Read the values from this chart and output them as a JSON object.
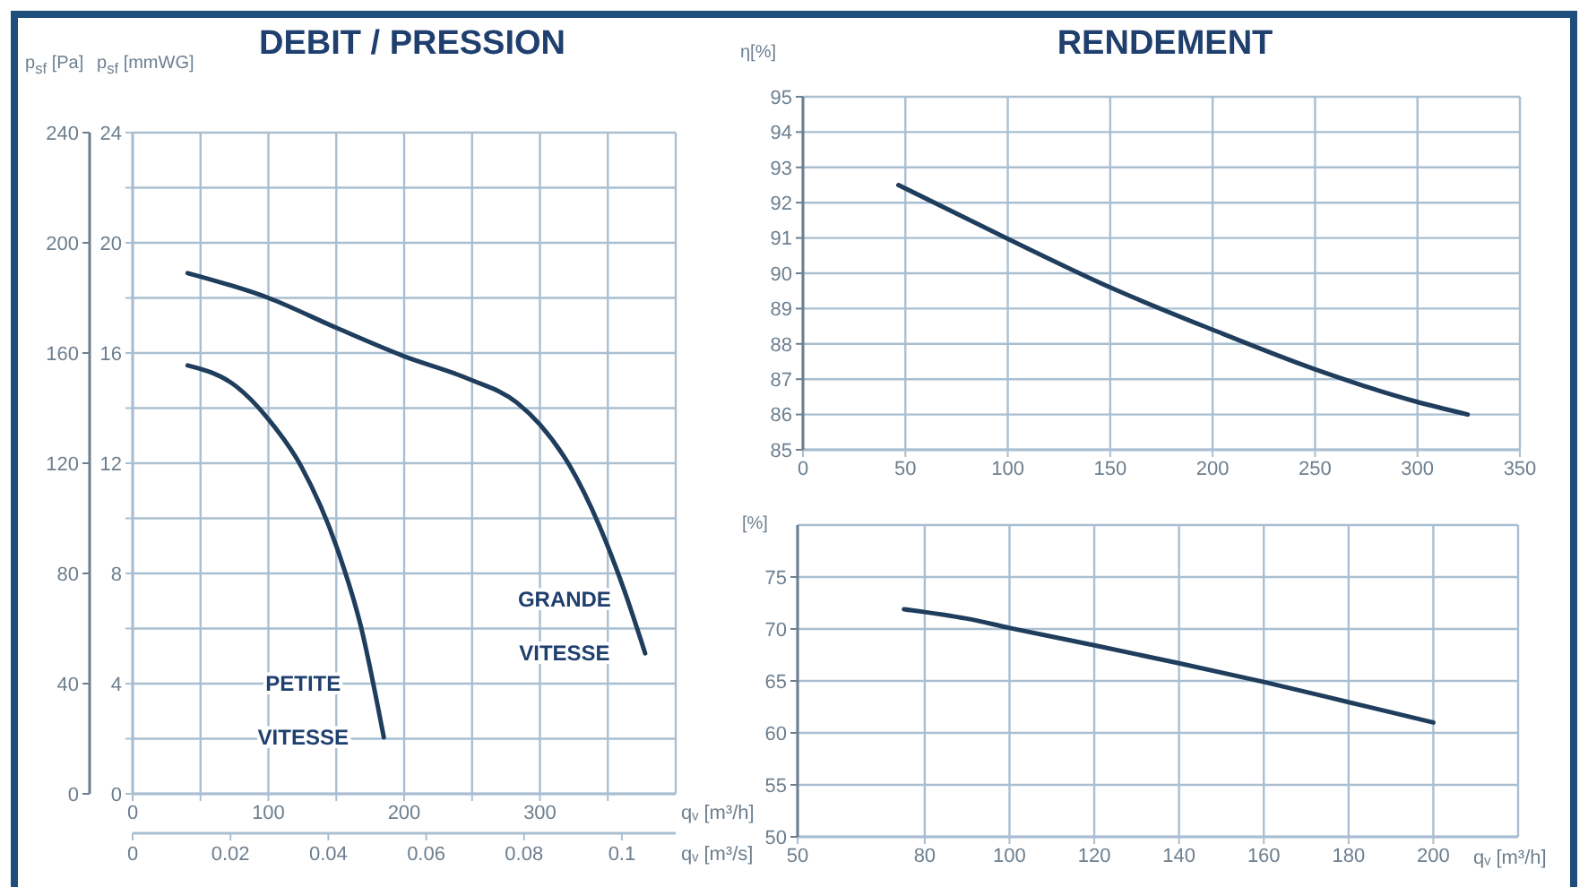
{
  "chart_data": [
    {
      "type": "line",
      "title": "DEBIT / PRESSION",
      "xlabel": "qᵥ [m³/h]",
      "x2label": "qᵥ [m³/s]",
      "ylabel": "p$_{sf}$ [Pa]",
      "y2label": "p$_{sf}$ [mmWG]",
      "xlim": [
        0,
        400
      ],
      "xticks": [
        0,
        {
          "value": 50,
          "label": null
        },
        100,
        {
          "value": 150,
          "label": null
        },
        200,
        {
          "value": 250,
          "label": null
        },
        300,
        {
          "value": 350,
          "label": null
        }
      ],
      "x2lim": [
        0,
        0.111
      ],
      "x2ticks": [
        0,
        0.02,
        0.04,
        0.06,
        0.08,
        0.1
      ],
      "ylim": [
        0,
        240
      ],
      "yticks": [
        0,
        40,
        80,
        120,
        160,
        200,
        240
      ],
      "y2lim": [
        0,
        24
      ],
      "y2ticks": [
        0,
        {
          "value": 2,
          "label": null
        },
        4,
        {
          "value": 6,
          "label": null
        },
        8,
        {
          "value": 10,
          "label": null
        },
        12,
        {
          "value": 14,
          "label": null
        },
        16,
        {
          "value": 18,
          "label": null
        },
        20,
        {
          "value": 22,
          "label": null
        },
        24
      ],
      "grid": true,
      "marker": "none",
      "series": [
        {
          "name": "GRANDE VITESSE",
          "color": "#1f3d5c",
          "x": [
            40.5,
            100,
            150.7,
            199,
            248,
            283,
            300,
            322,
            344,
            362,
            377.5
          ],
          "values": [
            189,
            180,
            169,
            159,
            150.5,
            142,
            134,
            119,
            97,
            74,
            51
          ]
        },
        {
          "name": "PETITE VITESSE",
          "color": "#1f3d5c",
          "x": [
            40.5,
            76,
            100,
            124,
            150.7,
            168,
            185
          ],
          "values": [
            155.5,
            148,
            136,
            119,
            89,
            61,
            20.5
          ]
        }
      ]
    },
    {
      "type": "line",
      "title": "RENDEMENT",
      "ylabel": "η[%]",
      "xlim": [
        0,
        350
      ],
      "xticks": [
        0,
        50,
        100,
        150,
        200,
        250,
        300,
        350
      ],
      "ylim": [
        85,
        95
      ],
      "yticks": [
        85,
        86,
        87,
        88,
        89,
        90,
        91,
        92,
        93,
        94,
        95
      ],
      "grid": true,
      "marker": "none",
      "series": [
        {
          "color": "#1f3d5c",
          "x": [
            46.6,
            100.6,
            150,
            200,
            249,
            299,
            324.5
          ],
          "values": [
            92.5,
            90.96,
            89.6,
            88.4,
            87.3,
            86.37,
            86.0
          ]
        }
      ]
    },
    {
      "type": "line",
      "ylabel": "[%]",
      "xlabel": "qᵥ [m³/h]",
      "xlim": [
        50,
        220
      ],
      "xticks": [
        50,
        80,
        100,
        120,
        140,
        160,
        180,
        200
      ],
      "ylim": [
        50,
        80
      ],
      "yticks": [
        50,
        55,
        60,
        65,
        70,
        75
      ],
      "grid": true,
      "marker": "none",
      "series": [
        {
          "color": "#1f3d5c",
          "x": [
            75.1,
            89.9,
            100,
            120.3,
            140,
            160,
            179.6,
            200
          ],
          "values": [
            71.9,
            71.0,
            70.1,
            68.4,
            66.7,
            64.9,
            63.0,
            61.0
          ]
        }
      ]
    }
  ]
}
